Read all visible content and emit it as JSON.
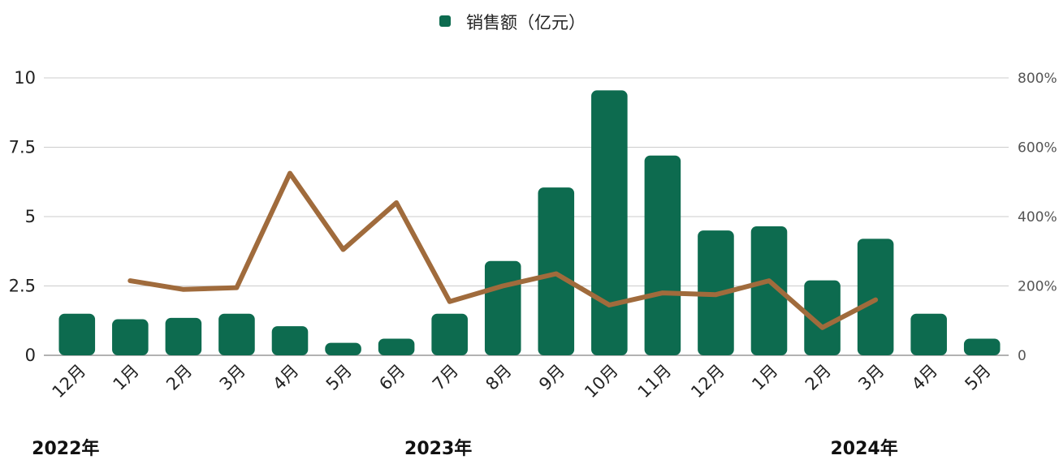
{
  "chart_data": {
    "type": "bar",
    "legend": {
      "position": "top-center"
    },
    "colors": {
      "bars": "#0d6b4f",
      "line": "#a06b3c"
    },
    "categories": [
      "12月",
      "1月",
      "2月",
      "3月",
      "4月",
      "5月",
      "6月",
      "7月",
      "8月",
      "9月",
      "10月",
      "11月",
      "12月",
      "1月",
      "2月",
      "3月",
      "4月",
      "5月"
    ],
    "year_labels": [
      {
        "text": "2022年",
        "category_index": 0
      },
      {
        "text": "2023年",
        "category_index": 7
      },
      {
        "text": "2024年",
        "category_index": 15
      }
    ],
    "series": [
      {
        "name": "销售额（亿元）",
        "type": "bar",
        "axis": "left",
        "values": [
          1.5,
          1.3,
          1.35,
          1.5,
          1.05,
          0.45,
          0.6,
          1.5,
          3.4,
          6.05,
          9.55,
          7.2,
          4.5,
          4.65,
          2.7,
          4.2,
          1.5,
          0.6
        ]
      },
      {
        "type": "line",
        "axis": "right",
        "values": [
          null,
          215,
          190,
          195,
          525,
          305,
          440,
          155,
          200,
          235,
          145,
          180,
          175,
          215,
          80,
          160,
          null,
          null
        ]
      }
    ],
    "y_left": {
      "min": 0,
      "max": 10,
      "ticks": [
        0,
        2.5,
        5,
        7.5,
        10
      ],
      "tick_labels": [
        "0",
        "2.5",
        "5",
        "7.5",
        "10"
      ]
    },
    "y_right": {
      "min": 0,
      "max": 800,
      "ticks": [
        0,
        200,
        400,
        600,
        800
      ],
      "tick_labels": [
        "0",
        "200%",
        "400%",
        "600%",
        "800%"
      ]
    },
    "grid": true
  }
}
